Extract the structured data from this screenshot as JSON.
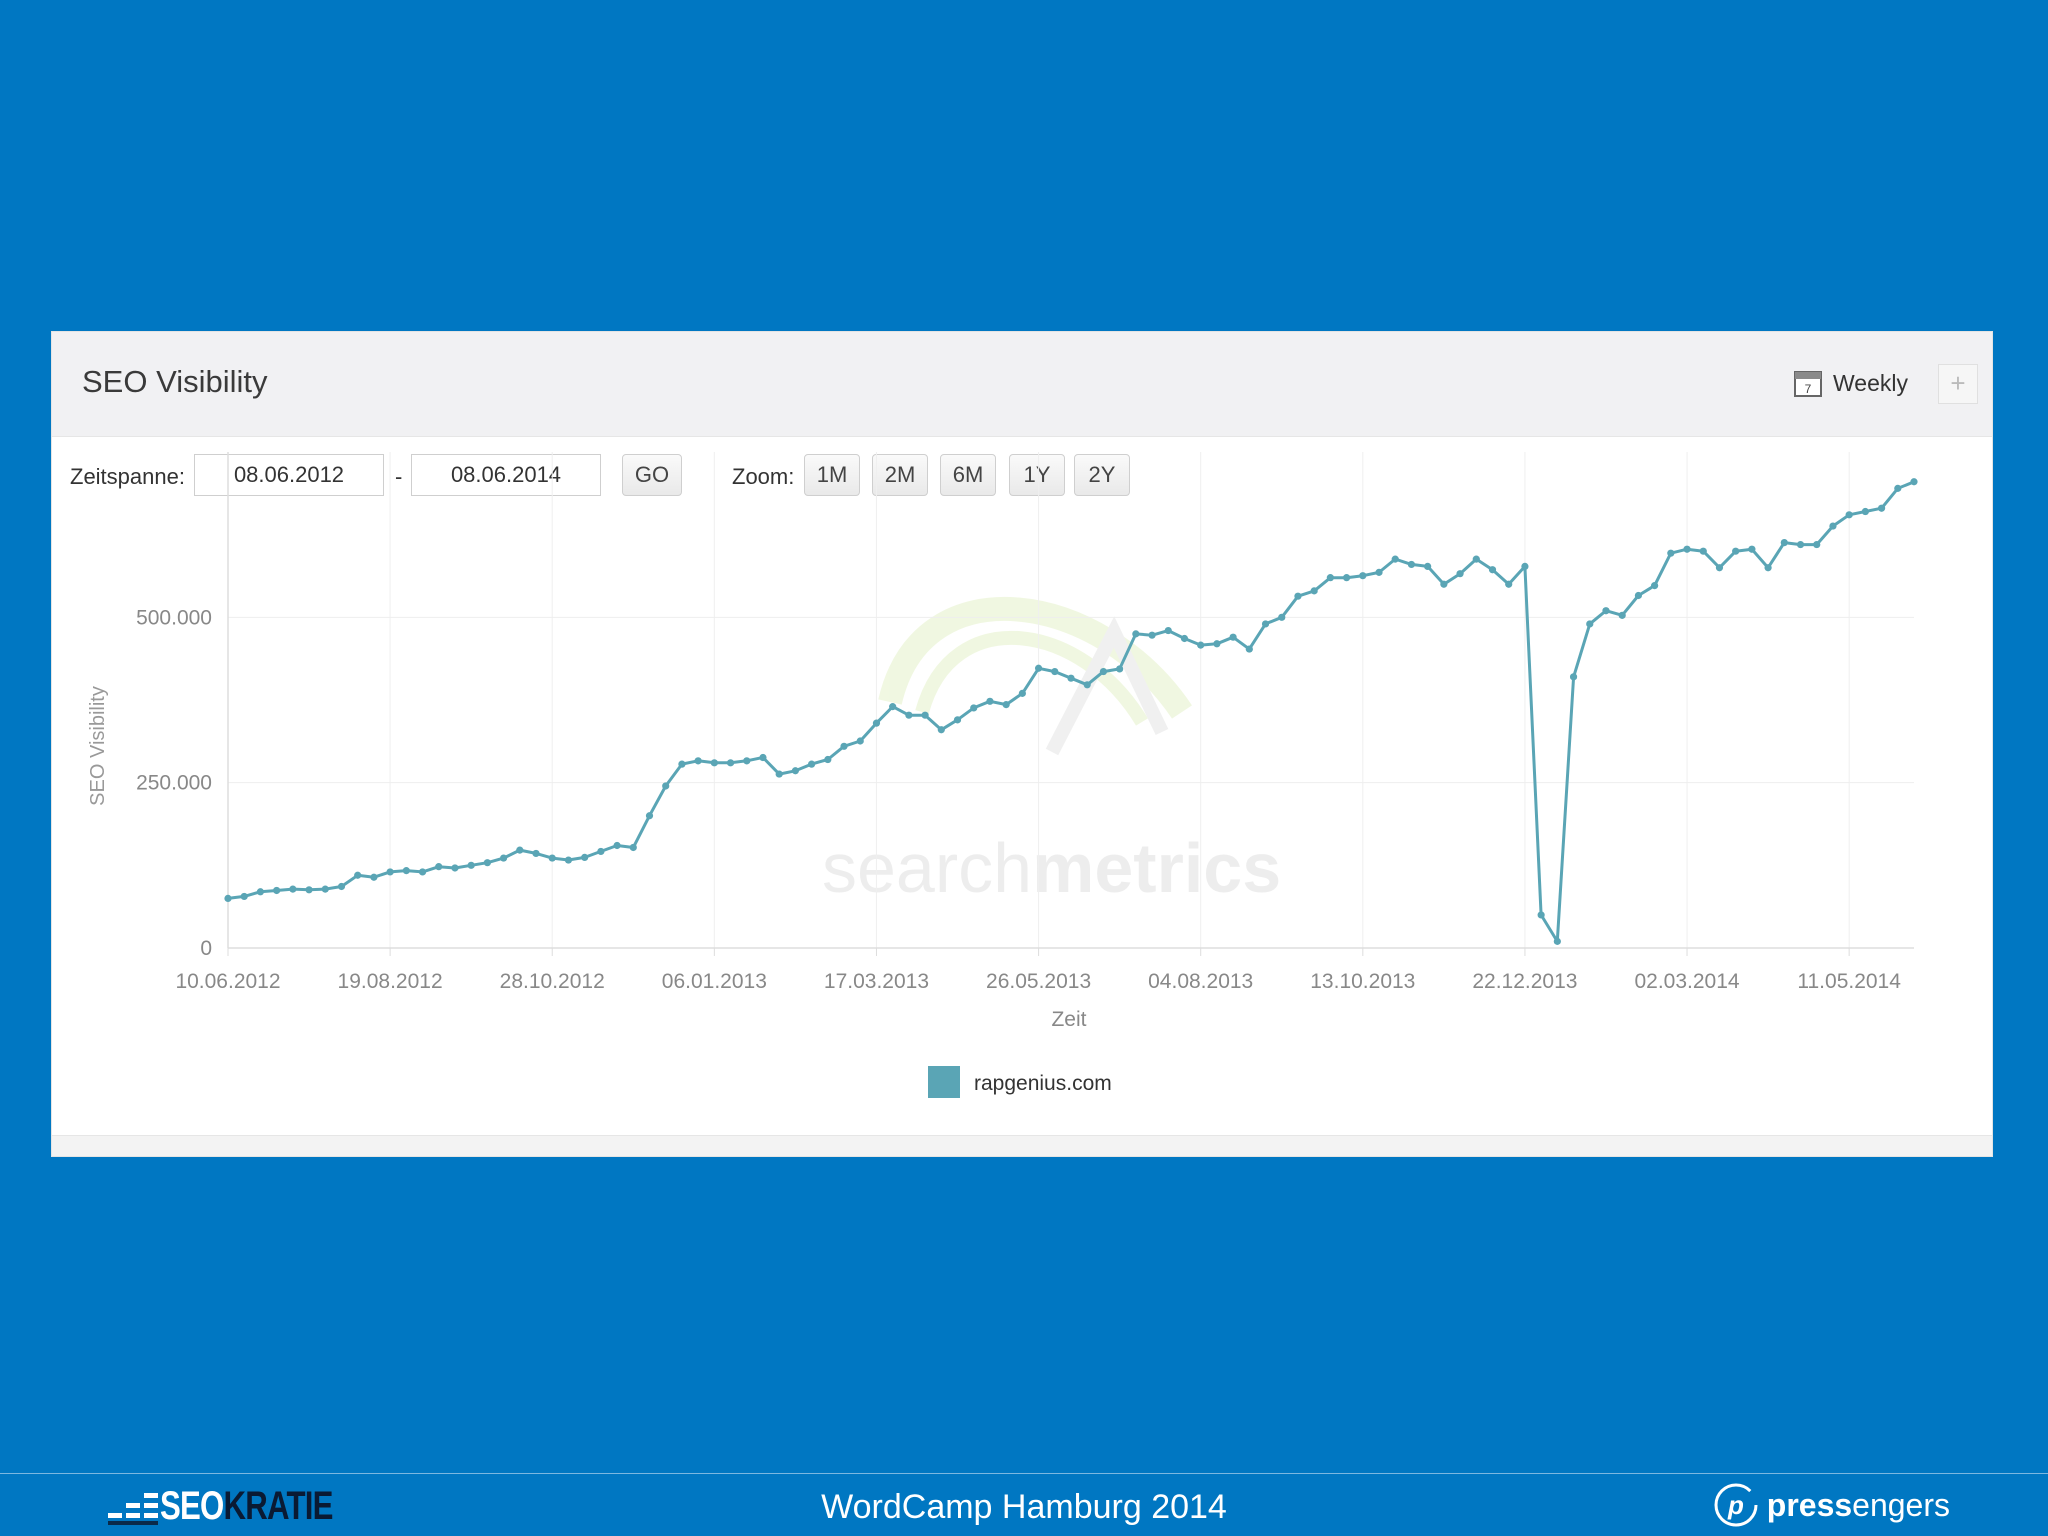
{
  "widget": {
    "title": "SEO Visibility",
    "interval_label": "Weekly",
    "add_label": "+"
  },
  "controls": {
    "range_label": "Zeitspanne:",
    "date_from": "08.06.2012",
    "separator": "-",
    "date_to": "08.06.2014",
    "go_label": "GO",
    "zoom_label": "Zoom:",
    "zoom_options": [
      "1M",
      "2M",
      "6M",
      "1Y",
      "2Y"
    ]
  },
  "watermark": {
    "text_light": "search",
    "text_bold": "metrics"
  },
  "colors": {
    "line": "#5aa5b5",
    "background": "#0077c2",
    "grid": "#eeeeee"
  },
  "chart_data": {
    "type": "line",
    "ylabel": "SEO Visibility",
    "xlabel": "Zeit",
    "ylim": [
      0,
      750000
    ],
    "yticks": [
      0,
      250000,
      500000
    ],
    "ytick_labels": [
      "0",
      "250.000",
      "500.000"
    ],
    "xtick_labels": [
      "10.06.2012",
      "19.08.2012",
      "28.10.2012",
      "06.01.2013",
      "17.03.2013",
      "26.05.2013",
      "04.08.2013",
      "13.10.2013",
      "22.12.2013",
      "02.03.2014",
      "11.05.2014"
    ],
    "grid": true,
    "legend": "bottom-center",
    "series": [
      {
        "name": "rapgenius.com",
        "color": "#5aa5b5",
        "values": [
          75000,
          78000,
          85000,
          87000,
          89000,
          88000,
          89000,
          93000,
          110000,
          107000,
          115000,
          117000,
          115000,
          123000,
          121000,
          125000,
          129000,
          136000,
          148000,
          143000,
          136000,
          133000,
          137000,
          146000,
          155000,
          152000,
          200000,
          245000,
          278000,
          283000,
          280000,
          280000,
          283000,
          288000,
          263000,
          268000,
          278000,
          285000,
          305000,
          313000,
          340000,
          365000,
          352000,
          352000,
          330000,
          345000,
          363000,
          373000,
          368000,
          385000,
          423000,
          418000,
          408000,
          398000,
          418000,
          422000,
          475000,
          473000,
          480000,
          468000,
          458000,
          460000,
          470000,
          452000,
          490000,
          500000,
          532000,
          540000,
          560000,
          560000,
          563000,
          568000,
          588000,
          580000,
          577000,
          550000,
          566000,
          588000,
          572000,
          550000,
          577000,
          50000,
          10000,
          410000,
          490000,
          510000,
          503000,
          533000,
          548000,
          597000,
          603000,
          600000,
          575000,
          600000,
          603000,
          575000,
          613000,
          610000,
          610000,
          638000,
          655000,
          660000,
          665000,
          695000,
          705000
        ]
      }
    ]
  },
  "footer": {
    "left_logo_part1": "SEO",
    "left_logo_part2": "KRATIE",
    "center_text": "WordCamp Hamburg 2014",
    "right_logo_bold": "press",
    "right_logo_light": "engers"
  }
}
